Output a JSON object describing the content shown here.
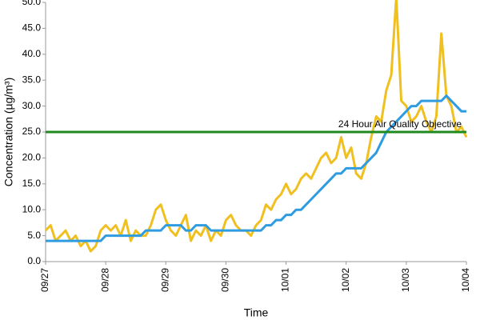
{
  "chart_data": {
    "type": "line",
    "y_label": "Concentration (µg/m³)",
    "x_label": "Time",
    "x": [
      0,
      2,
      4,
      6,
      8,
      10,
      12,
      14,
      16,
      18,
      20,
      22,
      24,
      26,
      28,
      30,
      32,
      34,
      36,
      38,
      40,
      42,
      44,
      46,
      48,
      50,
      52,
      54,
      56,
      58,
      60,
      62,
      64,
      66,
      68,
      70,
      72,
      74,
      76,
      78,
      80,
      82,
      84,
      86,
      88,
      90,
      92,
      94,
      96,
      98,
      100,
      102,
      104,
      106,
      108,
      110,
      112,
      114,
      116,
      118,
      120,
      122,
      124,
      126,
      128,
      130,
      132,
      134,
      136,
      138,
      140,
      142,
      144,
      146,
      148,
      150,
      152,
      154,
      156,
      158,
      160,
      162,
      164,
      166,
      168
    ],
    "xlim": [
      0,
      168
    ],
    "xticks": [
      {
        "value": 0,
        "label": "09/27"
      },
      {
        "value": 24,
        "label": "09/28"
      },
      {
        "value": 48,
        "label": "09/29"
      },
      {
        "value": 72,
        "label": "09/30"
      },
      {
        "value": 96,
        "label": "10/01"
      },
      {
        "value": 120,
        "label": "10/02"
      },
      {
        "value": 144,
        "label": "10/03"
      },
      {
        "value": 168,
        "label": "10/04"
      }
    ],
    "ylim": [
      0,
      50
    ],
    "yticks": [
      {
        "value": 0,
        "label": "0.0"
      },
      {
        "value": 5,
        "label": "5.0"
      },
      {
        "value": 10,
        "label": "10.0"
      },
      {
        "value": 15,
        "label": "15.0"
      },
      {
        "value": 20,
        "label": "20.0"
      },
      {
        "value": 25,
        "label": "25.0"
      },
      {
        "value": 30,
        "label": "30.0"
      },
      {
        "value": 35,
        "label": "35.0"
      },
      {
        "value": 40,
        "label": "40.0"
      },
      {
        "value": 45,
        "label": "45.0"
      },
      {
        "value": 50,
        "label": "50.0"
      }
    ],
    "series": [
      {
        "color": "#f0c020",
        "values": [
          6,
          7,
          4,
          5,
          6,
          4,
          5,
          3,
          4,
          2,
          3,
          6,
          7,
          6,
          7,
          5,
          8,
          4,
          6,
          5,
          5,
          7,
          10,
          11,
          8,
          6,
          5,
          7,
          9,
          4,
          6,
          5,
          7,
          4,
          6,
          5,
          8,
          9,
          7,
          6,
          6,
          5,
          7,
          8,
          11,
          10,
          12,
          13,
          15,
          13,
          14,
          16,
          17,
          16,
          18,
          20,
          21,
          19,
          20,
          24,
          20,
          22,
          17,
          16,
          19,
          24,
          28,
          27,
          33,
          36,
          51,
          31,
          30,
          27,
          28,
          30,
          27,
          25,
          28,
          44,
          32,
          30,
          25,
          26,
          24
        ]
      },
      {
        "color": "#2f9be0",
        "values": [
          4,
          4,
          4,
          4,
          4,
          4,
          4,
          4,
          4,
          4,
          4,
          4,
          5,
          5,
          5,
          5,
          5,
          5,
          5,
          5,
          6,
          6,
          6,
          6,
          7,
          7,
          7,
          7,
          6,
          6,
          7,
          7,
          7,
          6,
          6,
          6,
          6,
          6,
          6,
          6,
          6,
          6,
          6,
          6,
          7,
          7,
          8,
          8,
          9,
          9,
          10,
          10,
          11,
          12,
          13,
          14,
          15,
          16,
          17,
          17,
          18,
          18,
          18,
          18,
          19,
          20,
          21,
          23,
          25,
          26,
          27,
          28,
          29,
          30,
          30,
          31,
          31,
          31,
          31,
          31,
          32,
          31,
          30,
          29,
          29
        ]
      }
    ],
    "reference_lines": [
      {
        "value": 25,
        "label": "24 Hour Air Quality Objective",
        "color": "#1f8a1f"
      }
    ]
  }
}
